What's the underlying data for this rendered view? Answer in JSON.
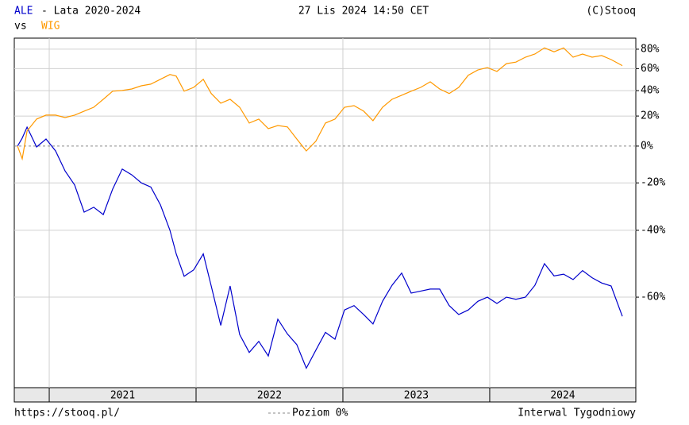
{
  "chart_data": {
    "type": "line",
    "title": "- Lata 2020-2024",
    "date": "27 Lis 2024 14:50 CET",
    "source": "(C)Stooq",
    "vs_label": "vs",
    "url": "https://stooq.pl/",
    "zero_label": "Poziom 0%",
    "interval": "Interwal Tygodniowy",
    "yscale": "log-ratio",
    "grid": true,
    "x": [
      2020.784,
      2020.816,
      2020.849,
      2020.914,
      2020.978,
      2021.043,
      2021.108,
      2021.173,
      2021.238,
      2021.303,
      2021.368,
      2021.432,
      2021.497,
      2021.562,
      2021.627,
      2021.692,
      2021.757,
      2021.822,
      2021.865,
      2021.919,
      2021.984,
      2022.049,
      2022.103,
      2022.168,
      2022.232,
      2022.297,
      2022.362,
      2022.427,
      2022.492,
      2022.557,
      2022.622,
      2022.686,
      2022.751,
      2022.816,
      2022.881,
      2022.946,
      2023.011,
      2023.076,
      2023.141,
      2023.205,
      2023.27,
      2023.335,
      2023.4,
      2023.465,
      2023.53,
      2023.595,
      2023.659,
      2023.724,
      2023.789,
      2023.854,
      2023.919,
      2023.984,
      2024.049,
      2024.114,
      2024.178,
      2024.243,
      2024.308,
      2024.373,
      2024.438,
      2024.503,
      2024.568,
      2024.632,
      2024.697,
      2024.762,
      2024.827,
      2024.903
    ],
    "series": [
      {
        "name": "ALE",
        "color": "#0000cc",
        "values": [
          0,
          5,
          12.2,
          -0.5,
          4.4,
          -2.9,
          -14,
          -21,
          -33,
          -31,
          -34,
          -23,
          -13,
          -16,
          -20,
          -22,
          -30,
          -40,
          -48,
          -54.6,
          -52.8,
          -48,
          -57.2,
          -66.3,
          -57.2,
          -68.1,
          -71.4,
          -69.4,
          -72,
          -65,
          -68,
          -70,
          -74,
          -71,
          -67.7,
          -69,
          -63,
          -62,
          -64,
          -66,
          -61,
          -57,
          -53.7,
          -59,
          -58.5,
          -58,
          -58,
          -62,
          -64,
          -63,
          -61,
          -60,
          -61.5,
          -60,
          -60.5,
          -60,
          -57,
          -51,
          -54.5,
          -54,
          -55.5,
          -53,
          -55,
          -56.4,
          -57.2,
          -64.4
        ]
      },
      {
        "name": "WIG",
        "color": "#ff9900",
        "values": [
          0,
          -7.4,
          9.6,
          17.8,
          20.7,
          20.7,
          18.9,
          20.7,
          23.6,
          26.6,
          32.8,
          39.5,
          40.1,
          41.4,
          44.2,
          45.6,
          50,
          54.4,
          52.9,
          39.5,
          42.8,
          50,
          37.6,
          29.7,
          32.8,
          26.6,
          15,
          17.8,
          11.2,
          13.3,
          12.3,
          4.4,
          -2.9,
          3,
          15,
          17.8,
          26.6,
          27.8,
          23.6,
          16.7,
          26.6,
          32.8,
          36.1,
          39.5,
          42.8,
          47.7,
          41.4,
          37.6,
          42.8,
          53.7,
          58.7,
          61,
          57.3,
          64.9,
          66.4,
          71.5,
          74.8,
          81.4,
          77.2,
          81.4,
          71.5,
          74.8,
          71.5,
          73.2,
          69,
          62.9
        ]
      }
    ],
    "xlim": [
      2020.762,
      2024.995
    ],
    "xticks": [
      2021,
      2022,
      2023,
      2024
    ],
    "ylim": [
      -76.9,
      92.5
    ],
    "yticks": [
      {
        "value": 80,
        "label": "80%"
      },
      {
        "value": 60,
        "label": "60%"
      },
      {
        "value": 40,
        "label": "40%"
      },
      {
        "value": 20,
        "label": "20%"
      },
      {
        "value": 0,
        "label": "0%"
      },
      {
        "value": -20,
        "label": "-20%"
      },
      {
        "value": -40,
        "label": "-40%"
      },
      {
        "value": -60,
        "label": "-60%"
      }
    ]
  }
}
